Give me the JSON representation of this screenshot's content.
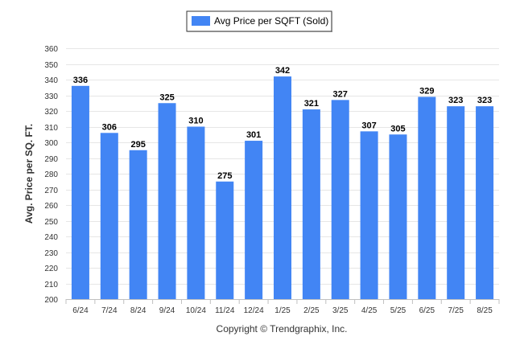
{
  "chart_data": {
    "type": "bar",
    "title": "",
    "legend": {
      "label": "Avg Price per SQFT (Sold)",
      "position": "top-center"
    },
    "xlabel": "",
    "ylabel": "Avg. Price per SQ. FT.",
    "categories": [
      "6/24",
      "7/24",
      "8/24",
      "9/24",
      "10/24",
      "11/24",
      "12/24",
      "1/25",
      "2/25",
      "3/25",
      "4/25",
      "5/25",
      "6/25",
      "7/25",
      "8/25"
    ],
    "series": [
      {
        "name": "Avg Price per SQFT (Sold)",
        "values": [
          336,
          306,
          295,
          325,
          310,
          275,
          301,
          342,
          321,
          327,
          307,
          305,
          329,
          323,
          323
        ],
        "color": "#4285f4"
      }
    ],
    "ylim": [
      200,
      360
    ],
    "yticks": [
      200,
      210,
      220,
      230,
      240,
      250,
      260,
      270,
      280,
      290,
      300,
      310,
      320,
      330,
      340,
      350,
      360
    ],
    "grid": true,
    "data_labels": true
  },
  "footer": {
    "copyright": "Copyright © Trendgraphix, Inc."
  }
}
